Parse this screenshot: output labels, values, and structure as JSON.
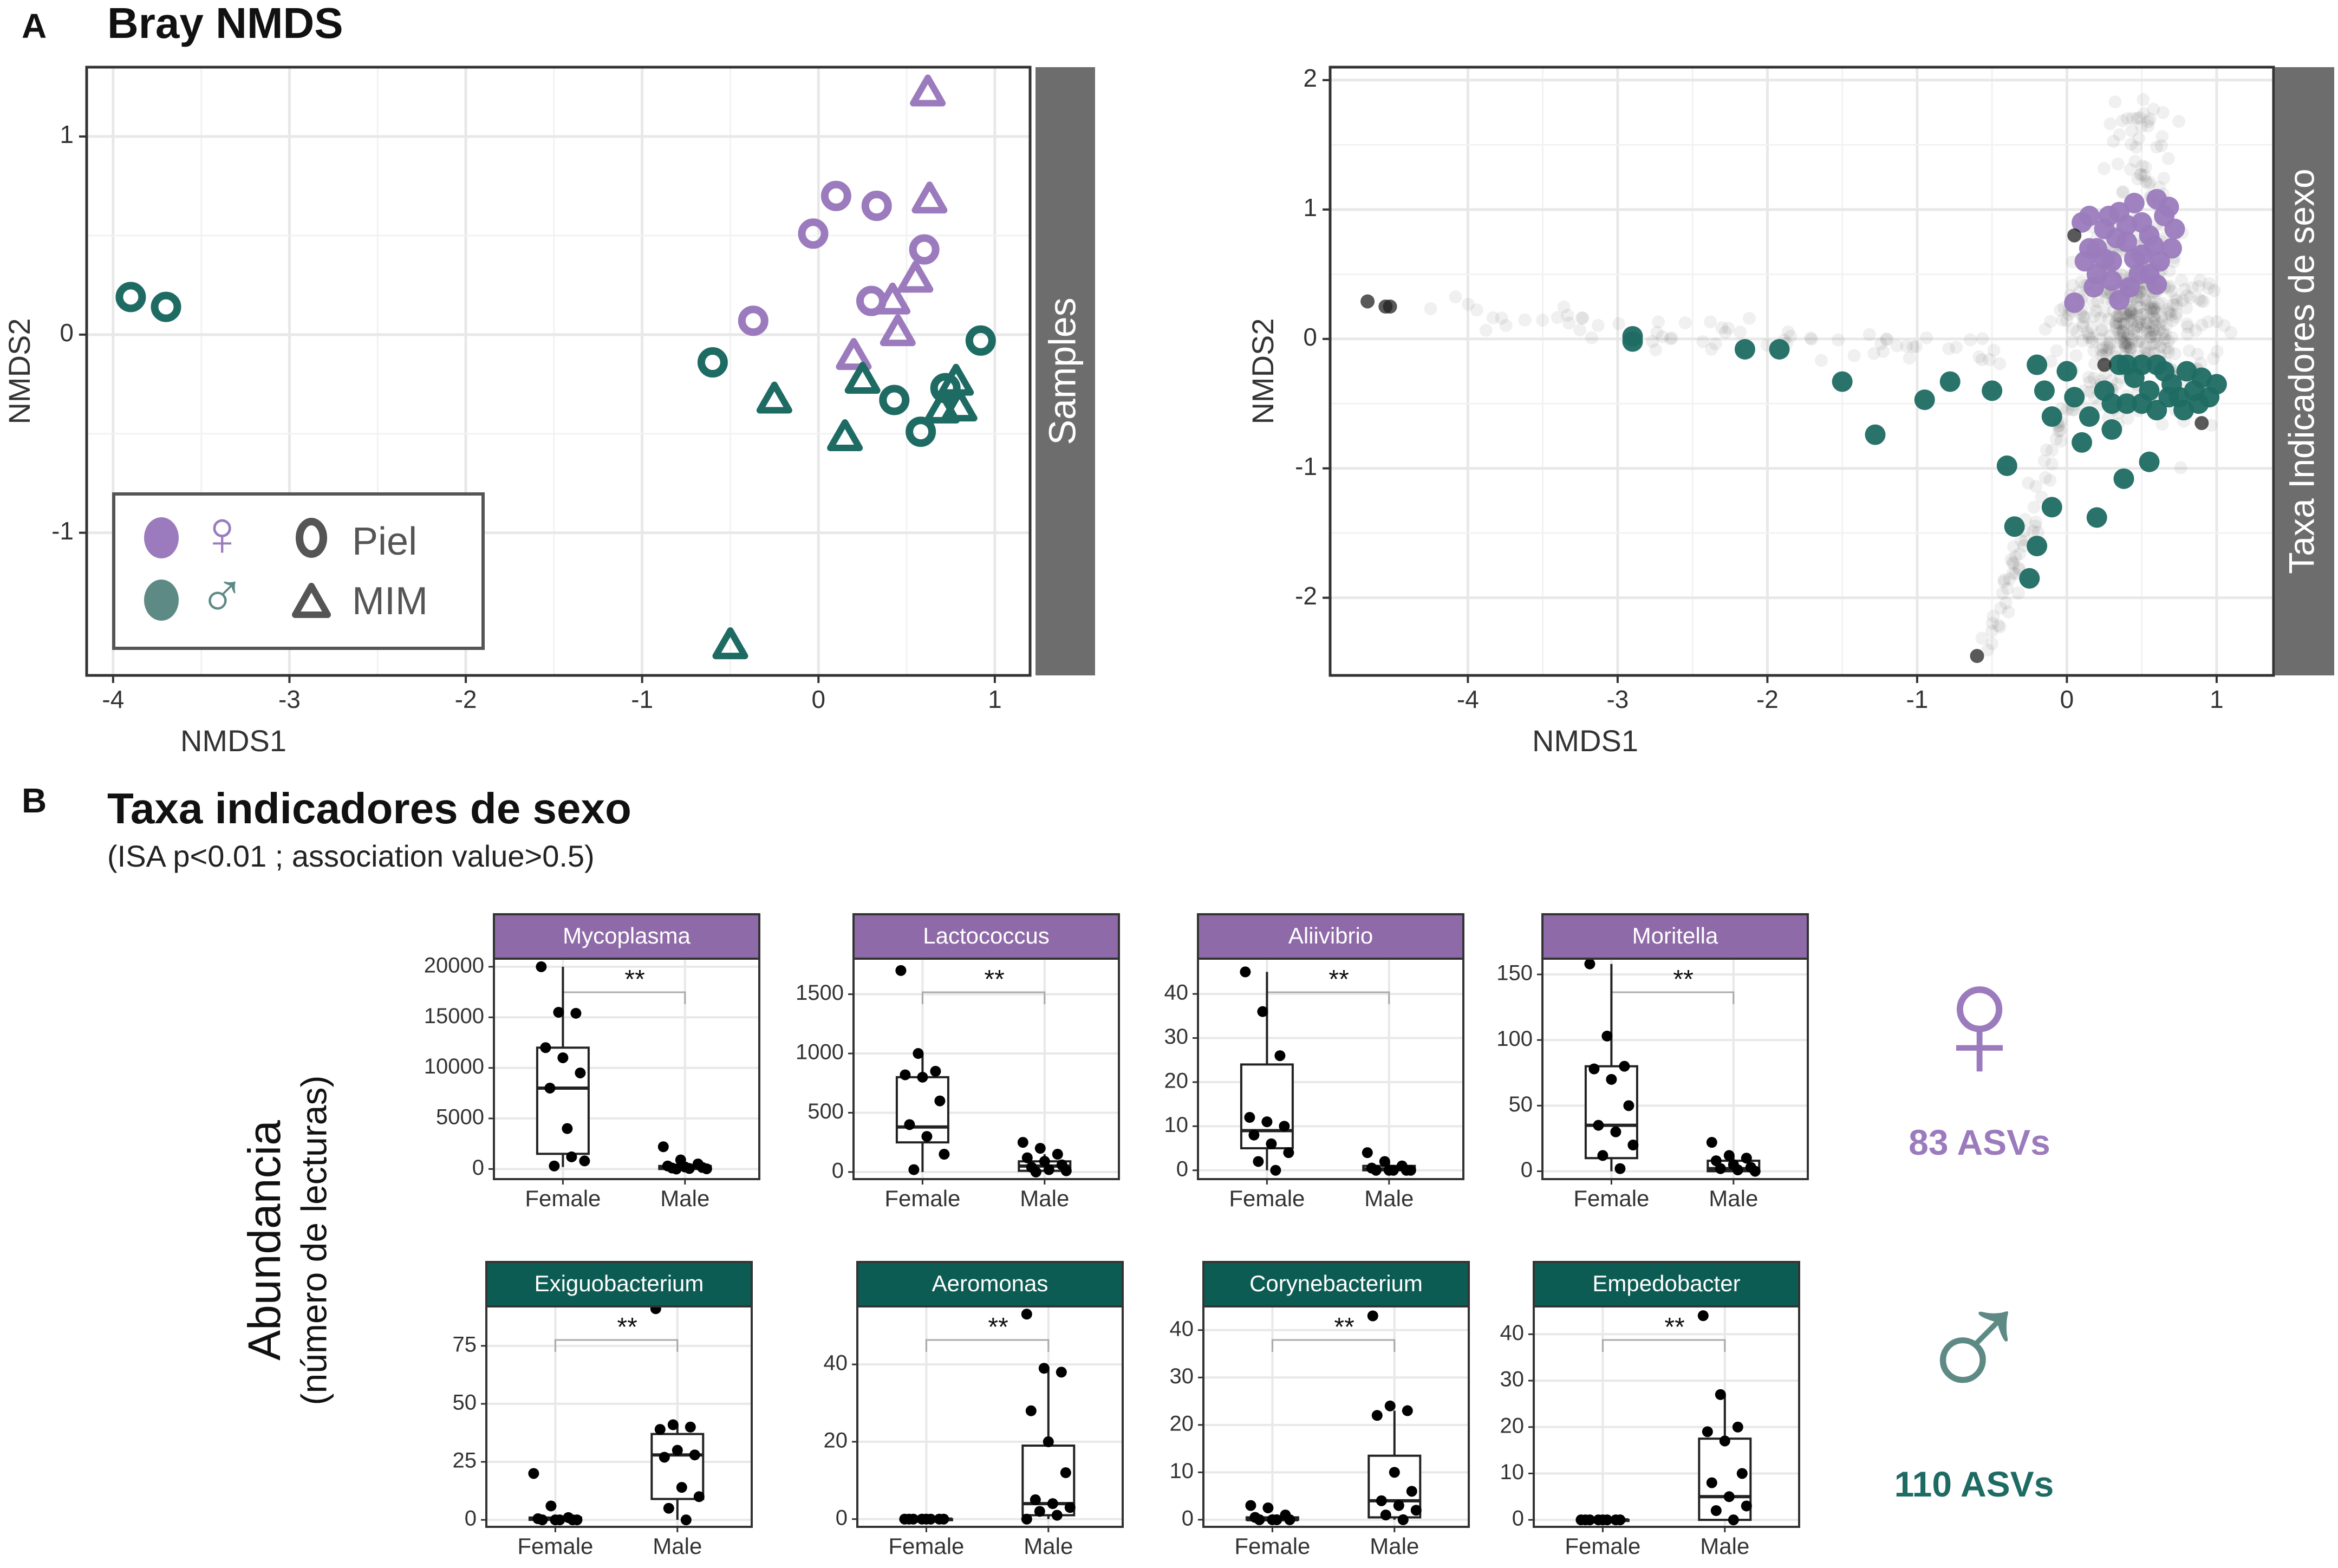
{
  "colors": {
    "female": "#9b7bbd",
    "male": "#1e6b63",
    "female_strip": "#8f6aa8",
    "male_strip": "#0d5c54",
    "facet_grey": "#6d6d6d",
    "grid": "#e8e8e8",
    "text": "#333333"
  },
  "panel_a": {
    "label": "A",
    "title": "Bray NMDS",
    "legend": {
      "female_symbol": "♀",
      "male_symbol": "♂",
      "piel": "Piel",
      "mim": "MIM"
    }
  },
  "panel_b": {
    "label": "B",
    "title": "Taxa indicadores de sexo",
    "subtitle": "(ISA  p<0.01 ; association value>0.5)",
    "ylabel_main": "Abundancia",
    "ylabel_sub": "(número de lecturas)",
    "female_summary": {
      "symbol": "♀",
      "count": "83 ASVs"
    },
    "male_summary": {
      "symbol": "♂",
      "count": "110 ASVs"
    }
  },
  "chart_data": [
    {
      "type": "scatter",
      "id": "samples",
      "facet": "Samples",
      "xlabel": "NMDS1",
      "ylabel": "NMDS2",
      "xlim": [
        -4.15,
        1.2
      ],
      "ylim": [
        -1.72,
        1.35
      ],
      "xticks": [
        -4,
        -3,
        -2,
        -1,
        0,
        1
      ],
      "yticks": [
        -1,
        0,
        1
      ],
      "series": [
        {
          "name": "Female Piel",
          "sex": "female",
          "tissue": "Piel",
          "points": [
            [
              -0.03,
              0.51
            ],
            [
              0.1,
              0.7
            ],
            [
              0.33,
              0.65
            ],
            [
              0.6,
              0.43
            ],
            [
              -0.37,
              0.07
            ],
            [
              0.3,
              0.17
            ]
          ]
        },
        {
          "name": "Female MIM",
          "sex": "female",
          "tissue": "MIM",
          "points": [
            [
              0.62,
              1.22
            ],
            [
              0.63,
              0.68
            ],
            [
              0.55,
              0.28
            ],
            [
              0.42,
              0.17
            ],
            [
              0.45,
              0.01
            ],
            [
              0.2,
              -0.11
            ]
          ]
        },
        {
          "name": "Male Piel",
          "sex": "male",
          "tissue": "Piel",
          "points": [
            [
              -3.9,
              0.19
            ],
            [
              -3.7,
              0.14
            ],
            [
              -0.6,
              -0.14
            ],
            [
              0.43,
              -0.33
            ],
            [
              0.58,
              -0.49
            ],
            [
              0.92,
              -0.03
            ],
            [
              0.72,
              -0.27
            ]
          ]
        },
        {
          "name": "Male MIM",
          "sex": "male",
          "tissue": "MIM",
          "points": [
            [
              -0.25,
              -0.33
            ],
            [
              0.25,
              -0.23
            ],
            [
              0.15,
              -0.52
            ],
            [
              0.78,
              -0.24
            ],
            [
              0.8,
              -0.37
            ],
            [
              0.7,
              -0.38
            ],
            [
              -0.5,
              -1.57
            ]
          ]
        }
      ]
    },
    {
      "type": "scatter",
      "id": "taxa",
      "facet": "Taxa Indicadores de sexo",
      "xlabel": "NMDS1",
      "ylabel": "NMDS2",
      "xlim": [
        -4.92,
        1.38
      ],
      "ylim": [
        -2.6,
        2.1
      ],
      "xticks": [
        -4,
        -3,
        -2,
        -1,
        0,
        1
      ],
      "yticks": [
        -2,
        -1,
        0,
        1,
        2
      ],
      "series": [
        {
          "name": "Female indicator ASVs",
          "sex": "female",
          "points": [
            [
              0.1,
              0.9
            ],
            [
              0.15,
              0.95
            ],
            [
              0.2,
              0.7
            ],
            [
              0.25,
              0.85
            ],
            [
              0.3,
              0.6
            ],
            [
              0.35,
              0.98
            ],
            [
              0.4,
              0.75
            ],
            [
              0.45,
              1.05
            ],
            [
              0.5,
              0.9
            ],
            [
              0.55,
              0.8
            ],
            [
              0.6,
              1.08
            ],
            [
              0.65,
              0.95
            ],
            [
              0.7,
              0.7
            ],
            [
              0.72,
              0.85
            ],
            [
              0.3,
              0.45
            ],
            [
              0.42,
              0.4
            ],
            [
              0.55,
              0.5
            ],
            [
              0.2,
              0.5
            ],
            [
              0.05,
              0.28
            ],
            [
              0.35,
              0.3
            ],
            [
              0.5,
              0.65
            ],
            [
              0.62,
              0.6
            ],
            [
              0.25,
              0.62
            ],
            [
              0.15,
              0.7
            ],
            [
              0.48,
              0.5
            ],
            [
              0.4,
              0.88
            ],
            [
              0.58,
              0.72
            ],
            [
              0.33,
              0.78
            ],
            [
              0.68,
              1.02
            ],
            [
              0.28,
              0.95
            ],
            [
              0.12,
              0.6
            ],
            [
              0.45,
              0.62
            ],
            [
              0.6,
              0.42
            ],
            [
              0.18,
              0.4
            ]
          ]
        },
        {
          "name": "Male indicator ASVs",
          "sex": "male",
          "points": [
            [
              -2.9,
              0.02
            ],
            [
              -2.9,
              -0.02
            ],
            [
              -2.15,
              -0.08
            ],
            [
              -1.92,
              -0.08
            ],
            [
              -1.5,
              -0.33
            ],
            [
              -1.28,
              -0.74
            ],
            [
              -0.95,
              -0.47
            ],
            [
              -0.78,
              -0.33
            ],
            [
              -0.5,
              -0.4
            ],
            [
              -0.4,
              -0.98
            ],
            [
              -0.35,
              -1.45
            ],
            [
              -0.25,
              -1.85
            ],
            [
              -0.2,
              -0.2
            ],
            [
              -0.15,
              -0.4
            ],
            [
              -0.1,
              -0.6
            ],
            [
              0.0,
              -0.25
            ],
            [
              0.05,
              -0.45
            ],
            [
              0.1,
              -0.8
            ],
            [
              0.15,
              -0.6
            ],
            [
              0.2,
              -1.38
            ],
            [
              0.25,
              -0.4
            ],
            [
              0.3,
              -0.7
            ],
            [
              0.35,
              -0.2
            ],
            [
              0.4,
              -0.5
            ],
            [
              0.45,
              -0.3
            ],
            [
              0.38,
              -1.08
            ],
            [
              0.5,
              -0.2
            ],
            [
              0.55,
              -0.4
            ],
            [
              0.6,
              -0.55
            ],
            [
              0.55,
              -0.95
            ],
            [
              0.65,
              -0.25
            ],
            [
              0.7,
              -0.35
            ],
            [
              0.75,
              -0.45
            ],
            [
              0.8,
              -0.25
            ],
            [
              0.85,
              -0.4
            ],
            [
              0.9,
              -0.3
            ],
            [
              0.95,
              -0.45
            ],
            [
              1.0,
              -0.35
            ],
            [
              0.6,
              -0.2
            ],
            [
              0.68,
              -0.45
            ],
            [
              0.5,
              -0.5
            ],
            [
              0.4,
              -0.2
            ],
            [
              0.3,
              -0.5
            ],
            [
              0.78,
              -0.55
            ],
            [
              0.88,
              -0.5
            ],
            [
              -0.1,
              -1.3
            ],
            [
              -0.2,
              -1.6
            ]
          ]
        },
        {
          "name": "Dark ASVs",
          "sex": "dark",
          "points": [
            [
              -4.67,
              0.29
            ],
            [
              -4.55,
              0.25
            ],
            [
              -4.52,
              0.25
            ],
            [
              -0.6,
              -2.45
            ],
            [
              0.9,
              -0.65
            ],
            [
              0.05,
              0.8
            ],
            [
              0.25,
              -0.2
            ]
          ]
        }
      ]
    },
    {
      "type": "box",
      "id": "mycoplasma",
      "title": "Mycoplasma",
      "group": "female",
      "categories": [
        "Female",
        "Male"
      ],
      "ylim": [
        -1000,
        20800
      ],
      "yticks": [
        0,
        5000,
        10000,
        15000,
        20000
      ],
      "signif": "**",
      "boxes": [
        {
          "q1": 1500,
          "median": 8000,
          "q3": 12000,
          "whisker_low": 200,
          "whisker_high": 20000,
          "points": [
            20000,
            15500,
            15400,
            12000,
            11000,
            9500,
            8000,
            4000,
            800,
            300,
            1200
          ]
        },
        {
          "q1": 0,
          "median": 150,
          "q3": 300,
          "whisker_low": 0,
          "whisker_high": 600,
          "points": [
            2200,
            900,
            500,
            300,
            200,
            150,
            100,
            50,
            20,
            0
          ]
        }
      ]
    },
    {
      "type": "box",
      "id": "lactococcus",
      "title": "Lactococcus",
      "group": "female",
      "categories": [
        "Female",
        "Male"
      ],
      "ylim": [
        -60,
        1800
      ],
      "yticks": [
        0,
        500,
        1000,
        1500
      ],
      "signif": "**",
      "boxes": [
        {
          "q1": 250,
          "median": 380,
          "q3": 800,
          "whisker_low": 0,
          "whisker_high": 1000,
          "points": [
            1700,
            1000,
            850,
            820,
            800,
            600,
            400,
            300,
            150,
            20
          ]
        },
        {
          "q1": 10,
          "median": 50,
          "q3": 90,
          "whisker_low": 0,
          "whisker_high": 150,
          "points": [
            250,
            200,
            150,
            120,
            90,
            60,
            40,
            20,
            10,
            0
          ]
        }
      ]
    },
    {
      "type": "box",
      "id": "aliivibrio",
      "title": "Aliivibrio",
      "group": "female",
      "categories": [
        "Female",
        "Male"
      ],
      "ylim": [
        -2,
        48
      ],
      "yticks": [
        0,
        10,
        20,
        30,
        40
      ],
      "signif": "**",
      "boxes": [
        {
          "q1": 5,
          "median": 9,
          "q3": 24,
          "whisker_low": 0,
          "whisker_high": 45,
          "points": [
            45,
            36,
            26,
            12,
            11,
            10,
            8,
            6,
            4,
            2,
            0
          ]
        },
        {
          "q1": 0,
          "median": 0.3,
          "q3": 1,
          "whisker_low": 0,
          "whisker_high": 2,
          "points": [
            4,
            2,
            1,
            0.5,
            0,
            0,
            0,
            0,
            0
          ]
        }
      ]
    },
    {
      "type": "box",
      "id": "moritella",
      "title": "Moritella",
      "group": "female",
      "categories": [
        "Female",
        "Male"
      ],
      "ylim": [
        -6,
        162
      ],
      "yticks": [
        0,
        50,
        100,
        150
      ],
      "signif": "**",
      "boxes": [
        {
          "q1": 10,
          "median": 35,
          "q3": 80,
          "whisker_low": 0,
          "whisker_high": 158,
          "points": [
            158,
            103,
            80,
            78,
            70,
            50,
            35,
            30,
            20,
            12,
            2
          ]
        },
        {
          "q1": 0,
          "median": 2,
          "q3": 8,
          "whisker_low": 0,
          "whisker_high": 12,
          "points": [
            22,
            12,
            10,
            8,
            5,
            3,
            2,
            1,
            0
          ]
        }
      ]
    },
    {
      "type": "box",
      "id": "exiguobacterium",
      "title": "Exiguobacterium",
      "group": "male",
      "categories": [
        "Female",
        "Male"
      ],
      "ylim": [
        -3,
        92
      ],
      "yticks": [
        0,
        25,
        50,
        75
      ],
      "signif": "**",
      "boxes": [
        {
          "q1": 0,
          "median": 0.5,
          "q3": 1,
          "whisker_low": 0,
          "whisker_high": 2,
          "points": [
            20,
            6,
            1,
            0.5,
            0,
            0,
            0,
            0,
            0
          ]
        },
        {
          "q1": 9,
          "median": 28,
          "q3": 37,
          "whisker_low": 0,
          "whisker_high": 41,
          "points": [
            91,
            41,
            40,
            39,
            30,
            28,
            27,
            14,
            10,
            5,
            0
          ]
        }
      ]
    },
    {
      "type": "box",
      "id": "aeromonas",
      "title": "Aeromonas",
      "group": "male",
      "categories": [
        "Female",
        "Male"
      ],
      "ylim": [
        -2,
        55
      ],
      "yticks": [
        0,
        20,
        40
      ],
      "signif": "**",
      "boxes": [
        {
          "q1": 0,
          "median": 0,
          "q3": 0,
          "whisker_low": 0,
          "whisker_high": 0,
          "points": [
            0,
            0,
            0,
            0,
            0,
            0,
            0,
            0
          ]
        },
        {
          "q1": 1,
          "median": 4,
          "q3": 19,
          "whisker_low": 0,
          "whisker_high": 39,
          "points": [
            53,
            39,
            38,
            28,
            20,
            12,
            5,
            4,
            3,
            2,
            1,
            0
          ]
        }
      ]
    },
    {
      "type": "box",
      "id": "corynebacterium",
      "title": "Corynebacterium",
      "group": "male",
      "categories": [
        "Female",
        "Male"
      ],
      "ylim": [
        -1.5,
        45
      ],
      "yticks": [
        0,
        10,
        20,
        30,
        40
      ],
      "signif": "**",
      "boxes": [
        {
          "q1": 0,
          "median": 0,
          "q3": 0.5,
          "whisker_low": 0,
          "whisker_high": 1,
          "points": [
            3,
            2.5,
            1,
            0.5,
            0,
            0,
            0,
            0
          ]
        },
        {
          "q1": 0.5,
          "median": 4,
          "q3": 13.5,
          "whisker_low": 0,
          "whisker_high": 23,
          "points": [
            43,
            24,
            23,
            22,
            10,
            6,
            4,
            3,
            2,
            1,
            0
          ]
        }
      ]
    },
    {
      "type": "box",
      "id": "empedobacter",
      "title": "Empedobacter",
      "group": "male",
      "categories": [
        "Female",
        "Male"
      ],
      "ylim": [
        -1.5,
        46
      ],
      "yticks": [
        0,
        10,
        20,
        30,
        40
      ],
      "signif": "**",
      "boxes": [
        {
          "q1": 0,
          "median": 0,
          "q3": 0,
          "whisker_low": 0,
          "whisker_high": 0,
          "points": [
            0,
            0,
            0,
            0,
            0,
            0,
            0,
            0
          ]
        },
        {
          "q1": 0,
          "median": 5,
          "q3": 17.5,
          "whisker_low": 0,
          "whisker_high": 27,
          "points": [
            44,
            27,
            20,
            19,
            17,
            10,
            8,
            5,
            3,
            2,
            0
          ]
        }
      ]
    }
  ]
}
